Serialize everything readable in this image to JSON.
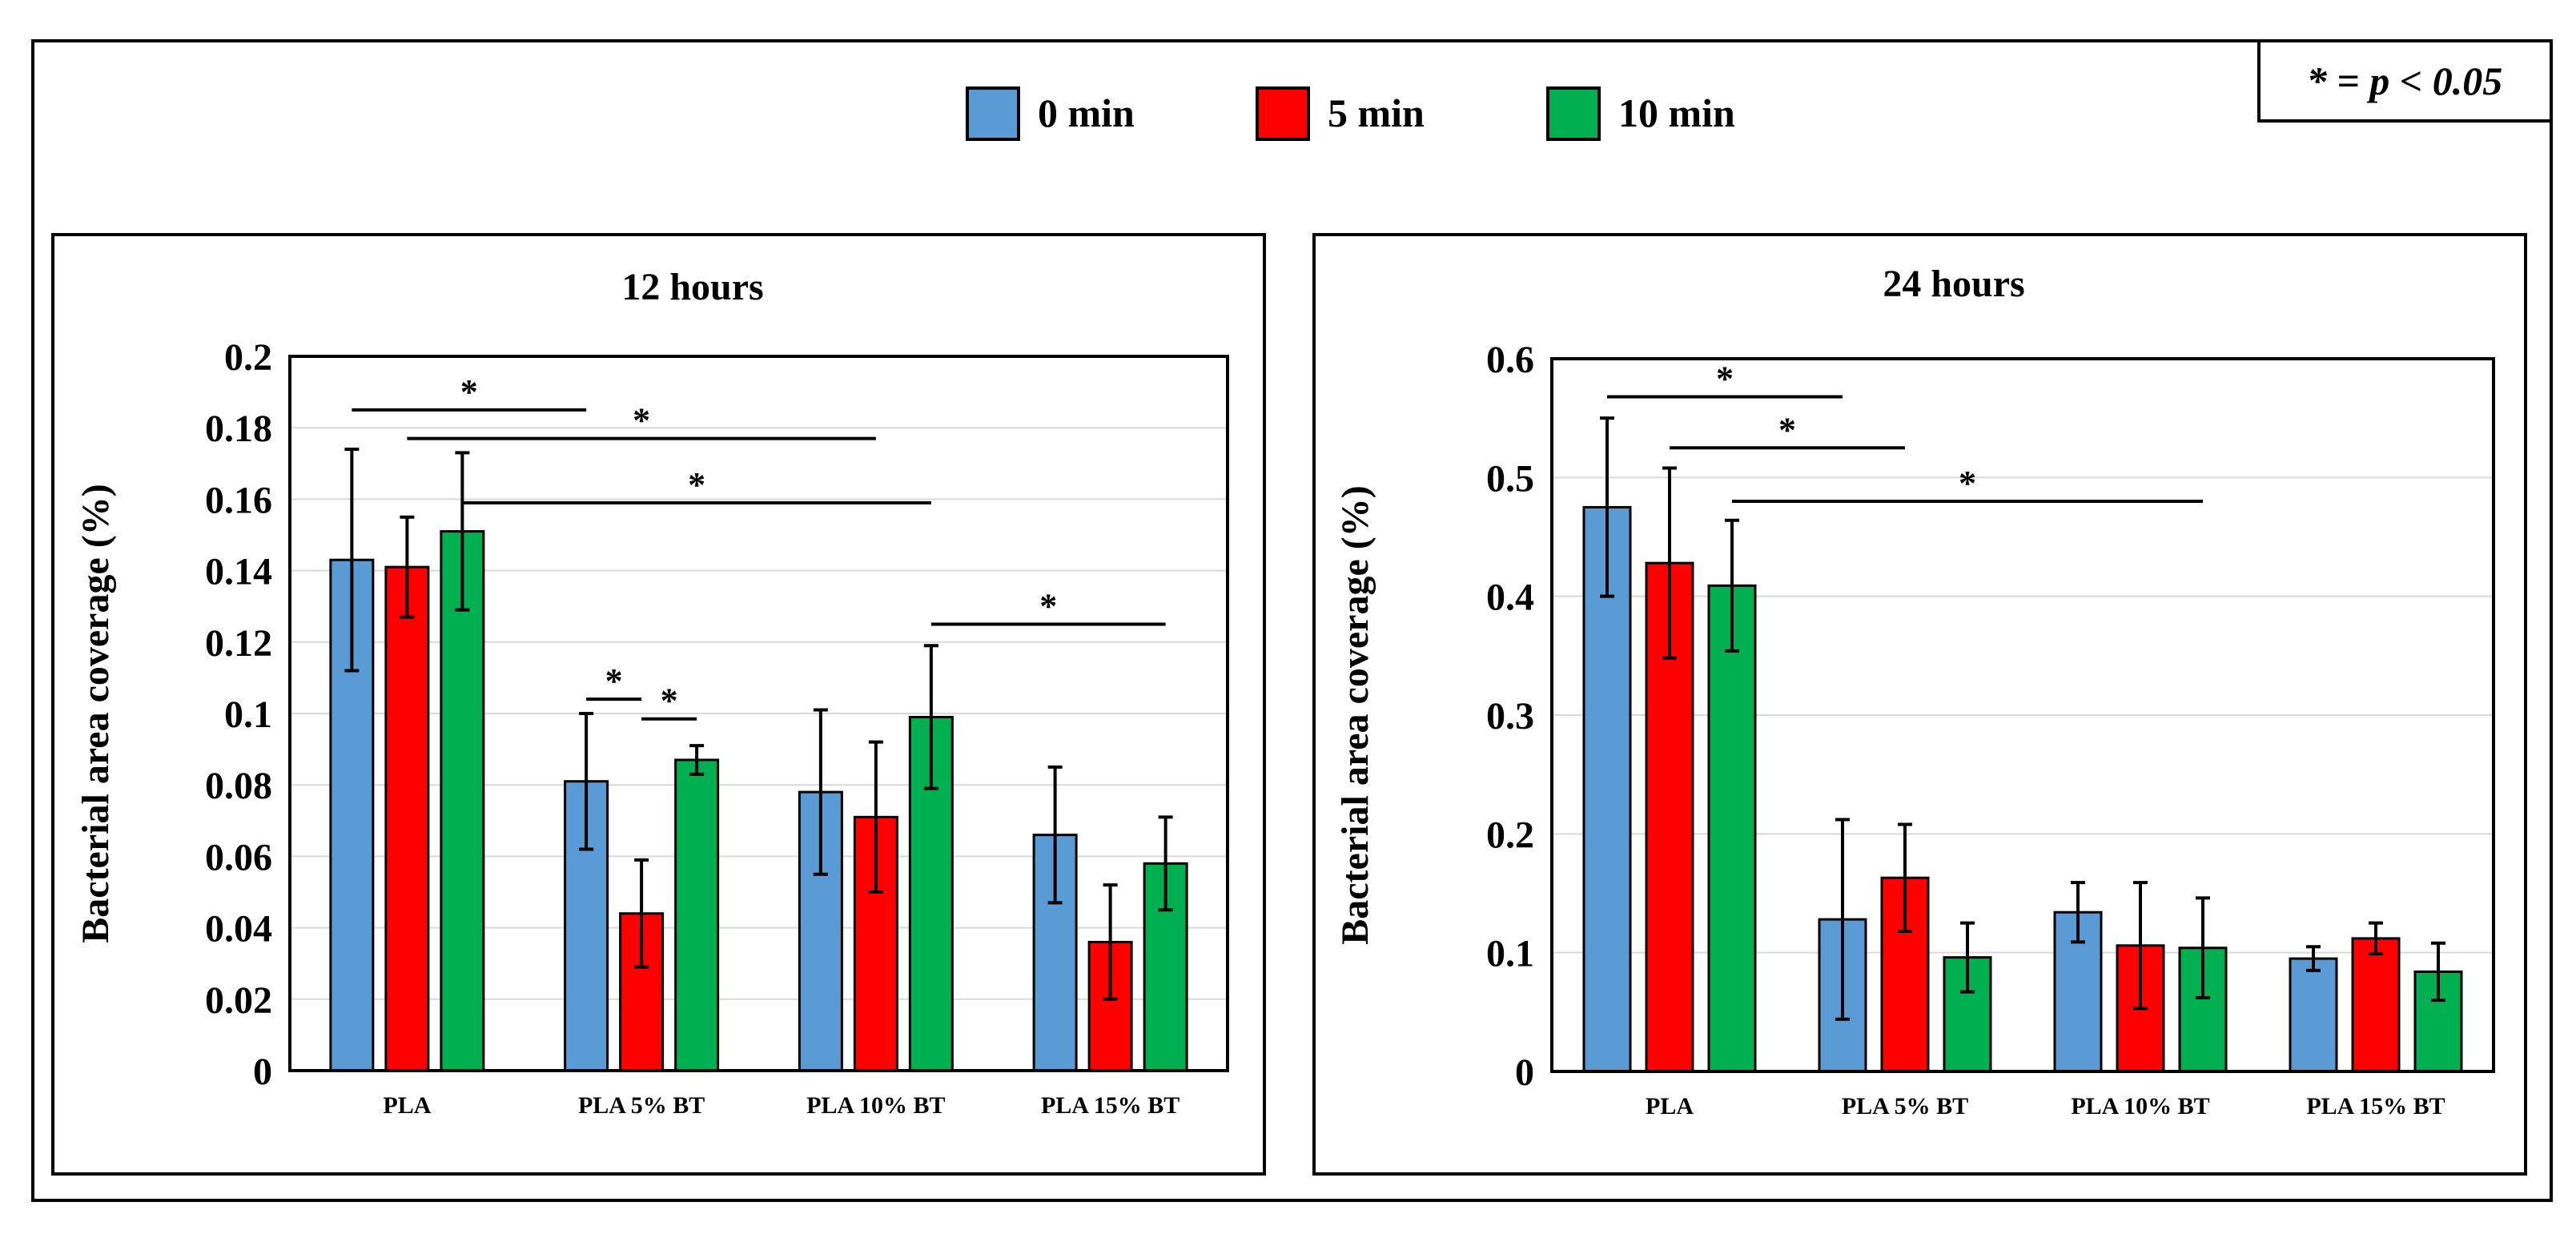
{
  "legend": {
    "entries": [
      {
        "label": "0 min",
        "color": "#5b9bd5"
      },
      {
        "label": "5 min",
        "color": "#ff0000"
      },
      {
        "label": "10 min",
        "color": "#00b050"
      }
    ],
    "note": "* = p < 0.05"
  },
  "chart_data": [
    {
      "type": "bar",
      "title": "12 hours",
      "ylabel": "Bacterial area coverage (%)",
      "xlabel": "",
      "ylim": [
        0,
        0.2
      ],
      "yticks": [
        0,
        0.02,
        0.04,
        0.06,
        0.08,
        0.1,
        0.12,
        0.14,
        0.16,
        0.18,
        0.2
      ],
      "ytick_labels": [
        "0",
        "0.02",
        "0.04",
        "0.06",
        "0.08",
        "0.1",
        "0.12",
        "0.14",
        "0.16",
        "0.18",
        "0.2"
      ],
      "grid": true,
      "categories": [
        "PLA",
        "PLA 5% BT",
        "PLA 10% BT",
        "PLA 15% BT"
      ],
      "series": [
        {
          "name": "0 min",
          "color": "#5b9bd5",
          "values": [
            0.143,
            0.081,
            0.078,
            0.066
          ],
          "errors": [
            0.031,
            0.019,
            0.023,
            0.019
          ]
        },
        {
          "name": "5 min",
          "color": "#ff0000",
          "values": [
            0.141,
            0.044,
            0.071,
            0.036
          ],
          "errors": [
            0.014,
            0.015,
            0.021,
            0.016
          ]
        },
        {
          "name": "10 min",
          "color": "#00b050",
          "values": [
            0.151,
            0.087,
            0.099,
            0.058
          ],
          "errors": [
            0.022,
            0.004,
            0.02,
            0.013
          ]
        }
      ],
      "significance": [
        {
          "from": [
            0,
            0
          ],
          "to": [
            1,
            0
          ],
          "level": 0.185,
          "label": "*"
        },
        {
          "from": [
            0,
            1
          ],
          "to": [
            2,
            1
          ],
          "level": 0.177,
          "label": "*"
        },
        {
          "from": [
            0,
            2
          ],
          "to": [
            2,
            2
          ],
          "level": 0.159,
          "label": "*"
        },
        {
          "from": [
            2,
            2
          ],
          "to": [
            3,
            2
          ],
          "level": 0.125,
          "label": "*"
        },
        {
          "from": [
            1,
            0
          ],
          "to": [
            1,
            1
          ],
          "level": 0.104,
          "label": "*"
        },
        {
          "from": [
            1,
            1
          ],
          "to": [
            1,
            2
          ],
          "level": 0.0985,
          "label": "*"
        }
      ]
    },
    {
      "type": "bar",
      "title": "24 hours",
      "ylabel": "Bacterial area coverage (%)",
      "xlabel": "",
      "ylim": [
        0,
        0.6
      ],
      "yticks": [
        0,
        0.1,
        0.2,
        0.3,
        0.4,
        0.5,
        0.6
      ],
      "ytick_labels": [
        "0",
        "0.1",
        "0.2",
        "0.3",
        "0.4",
        "0.5",
        "0.6"
      ],
      "grid": true,
      "categories": [
        "PLA",
        "PLA 5% BT",
        "PLA 10% BT",
        "PLA 15% BT"
      ],
      "series": [
        {
          "name": "0 min",
          "color": "#5b9bd5",
          "values": [
            0.475,
            0.128,
            0.134,
            0.095
          ],
          "errors": [
            0.075,
            0.084,
            0.025,
            0.01
          ]
        },
        {
          "name": "5 min",
          "color": "#ff0000",
          "values": [
            0.428,
            0.163,
            0.106,
            0.112
          ],
          "errors": [
            0.08,
            0.045,
            0.053,
            0.013
          ]
        },
        {
          "name": "10 min",
          "color": "#00b050",
          "values": [
            0.409,
            0.096,
            0.104,
            0.084
          ],
          "errors": [
            0.055,
            0.029,
            0.042,
            0.024
          ]
        }
      ],
      "significance": [
        {
          "from": [
            0,
            0
          ],
          "to": [
            1,
            0
          ],
          "level": 0.568,
          "label": "*"
        },
        {
          "from": [
            0,
            1
          ],
          "to": [
            1,
            1
          ],
          "level": 0.525,
          "label": "*"
        },
        {
          "from": [
            0,
            2
          ],
          "to": [
            2,
            2
          ],
          "level": 0.48,
          "label": "*"
        }
      ]
    }
  ]
}
